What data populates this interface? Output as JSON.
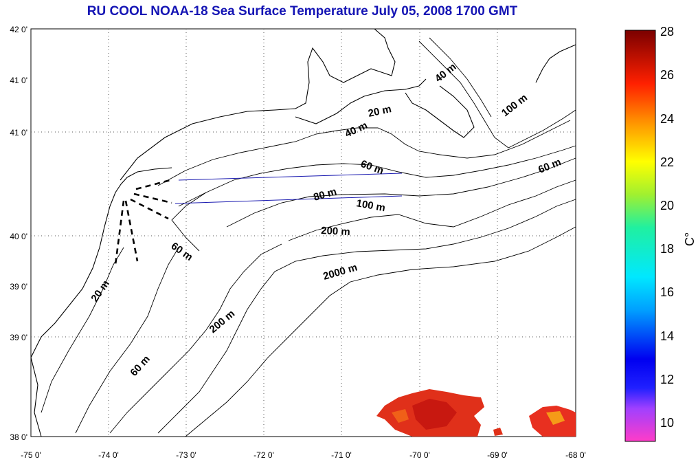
{
  "title": "RU COOL  NOAA-18 Sea Surface Temperature July 05, 2008 1700 GMT",
  "map": {
    "lon_labels": [
      "-75 0'",
      "-74 0'",
      "-73 0'",
      "-72 0'",
      "-71 0'",
      "-70 0'",
      "-69 0'",
      "-68 0'"
    ],
    "lat_labels": [
      "42 0'",
      "41 0'",
      "41 0'",
      "40 0'",
      "39 0'",
      "39 0'",
      "38 0'"
    ],
    "lon_range": [
      -75,
      -68
    ],
    "lat_range": [
      38,
      42
    ],
    "grid": "dotted"
  },
  "depth_labels": [
    "40 m",
    "100 m",
    "20 m",
    "40 m",
    "60 m",
    "60 m",
    "80 m",
    "100 m",
    "200 m",
    "60 m",
    "2000 m",
    "20 m",
    "200 m",
    "60 m"
  ],
  "colorbar": {
    "ticks": [
      "28",
      "26",
      "24",
      "22",
      "20",
      "18",
      "16",
      "14",
      "12",
      "10"
    ],
    "unit": "C°",
    "min": 9.2,
    "max": 28
  }
}
